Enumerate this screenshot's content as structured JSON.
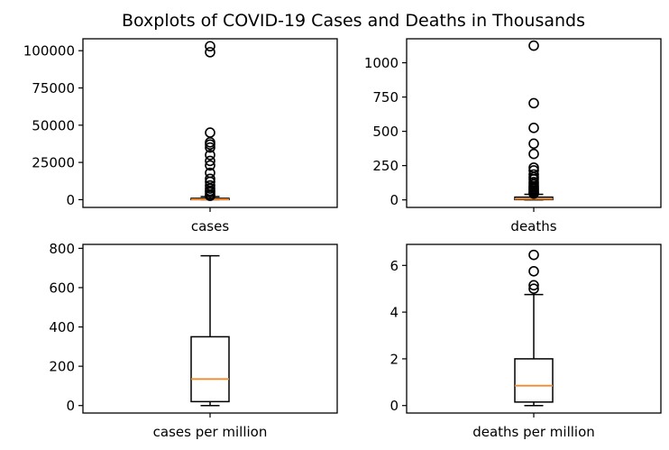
{
  "figure": {
    "title": "Boxplots of COVID-19 Cases and Deaths in Thousands"
  },
  "colors": {
    "box": "#000000",
    "median": "#f28a2e",
    "flier": "#000000",
    "background": "#ffffff"
  },
  "chart_data": [
    {
      "type": "boxplot",
      "category": "cases",
      "ylim": [
        -5200,
        108000
      ],
      "yticks": [
        0,
        25000,
        50000,
        75000,
        100000
      ],
      "ytick_labels": [
        "0",
        "25000",
        "50000",
        "75000",
        "100000"
      ],
      "box": {
        "whisker_low": 0,
        "q1": 40,
        "median": 220,
        "q3": 900,
        "whisker_high": 2100
      },
      "outliers": [
        103000,
        99000,
        45000,
        38500,
        37000,
        35000,
        30000,
        26000,
        23000,
        18000,
        14000,
        12000,
        9500,
        7500,
        6000,
        5000,
        3500,
        2600
      ]
    },
    {
      "type": "boxplot",
      "category": "deaths",
      "ylim": [
        -55,
        1175
      ],
      "yticks": [
        0,
        250,
        500,
        750,
        1000
      ],
      "ytick_labels": [
        "0",
        "250",
        "500",
        "750",
        "1000"
      ],
      "box": {
        "whisker_low": 0,
        "q1": 2,
        "median": 7,
        "q3": 20,
        "whisker_high": 40
      },
      "outliers": [
        1125,
        705,
        525,
        410,
        335,
        235,
        215,
        185,
        165,
        150,
        130,
        115,
        100,
        90,
        80,
        70,
        60,
        52,
        45
      ]
    },
    {
      "type": "boxplot",
      "category": "cases per million",
      "ylim": [
        -38,
        820
      ],
      "yticks": [
        0,
        200,
        400,
        600,
        800
      ],
      "ytick_labels": [
        "0",
        "200",
        "400",
        "600",
        "800"
      ],
      "box": {
        "whisker_low": 0,
        "q1": 20,
        "median": 135,
        "q3": 350,
        "whisker_high": 762
      },
      "outliers": []
    },
    {
      "type": "boxplot",
      "category": "deaths per million",
      "ylim": [
        -0.32,
        6.9
      ],
      "yticks": [
        0,
        2,
        4,
        6
      ],
      "ytick_labels": [
        "0",
        "2",
        "4",
        "6"
      ],
      "box": {
        "whisker_low": 0,
        "q1": 0.15,
        "median": 0.85,
        "q3": 2.0,
        "whisker_high": 4.75
      },
      "outliers": [
        6.45,
        5.75,
        5.15,
        5.0
      ]
    }
  ]
}
